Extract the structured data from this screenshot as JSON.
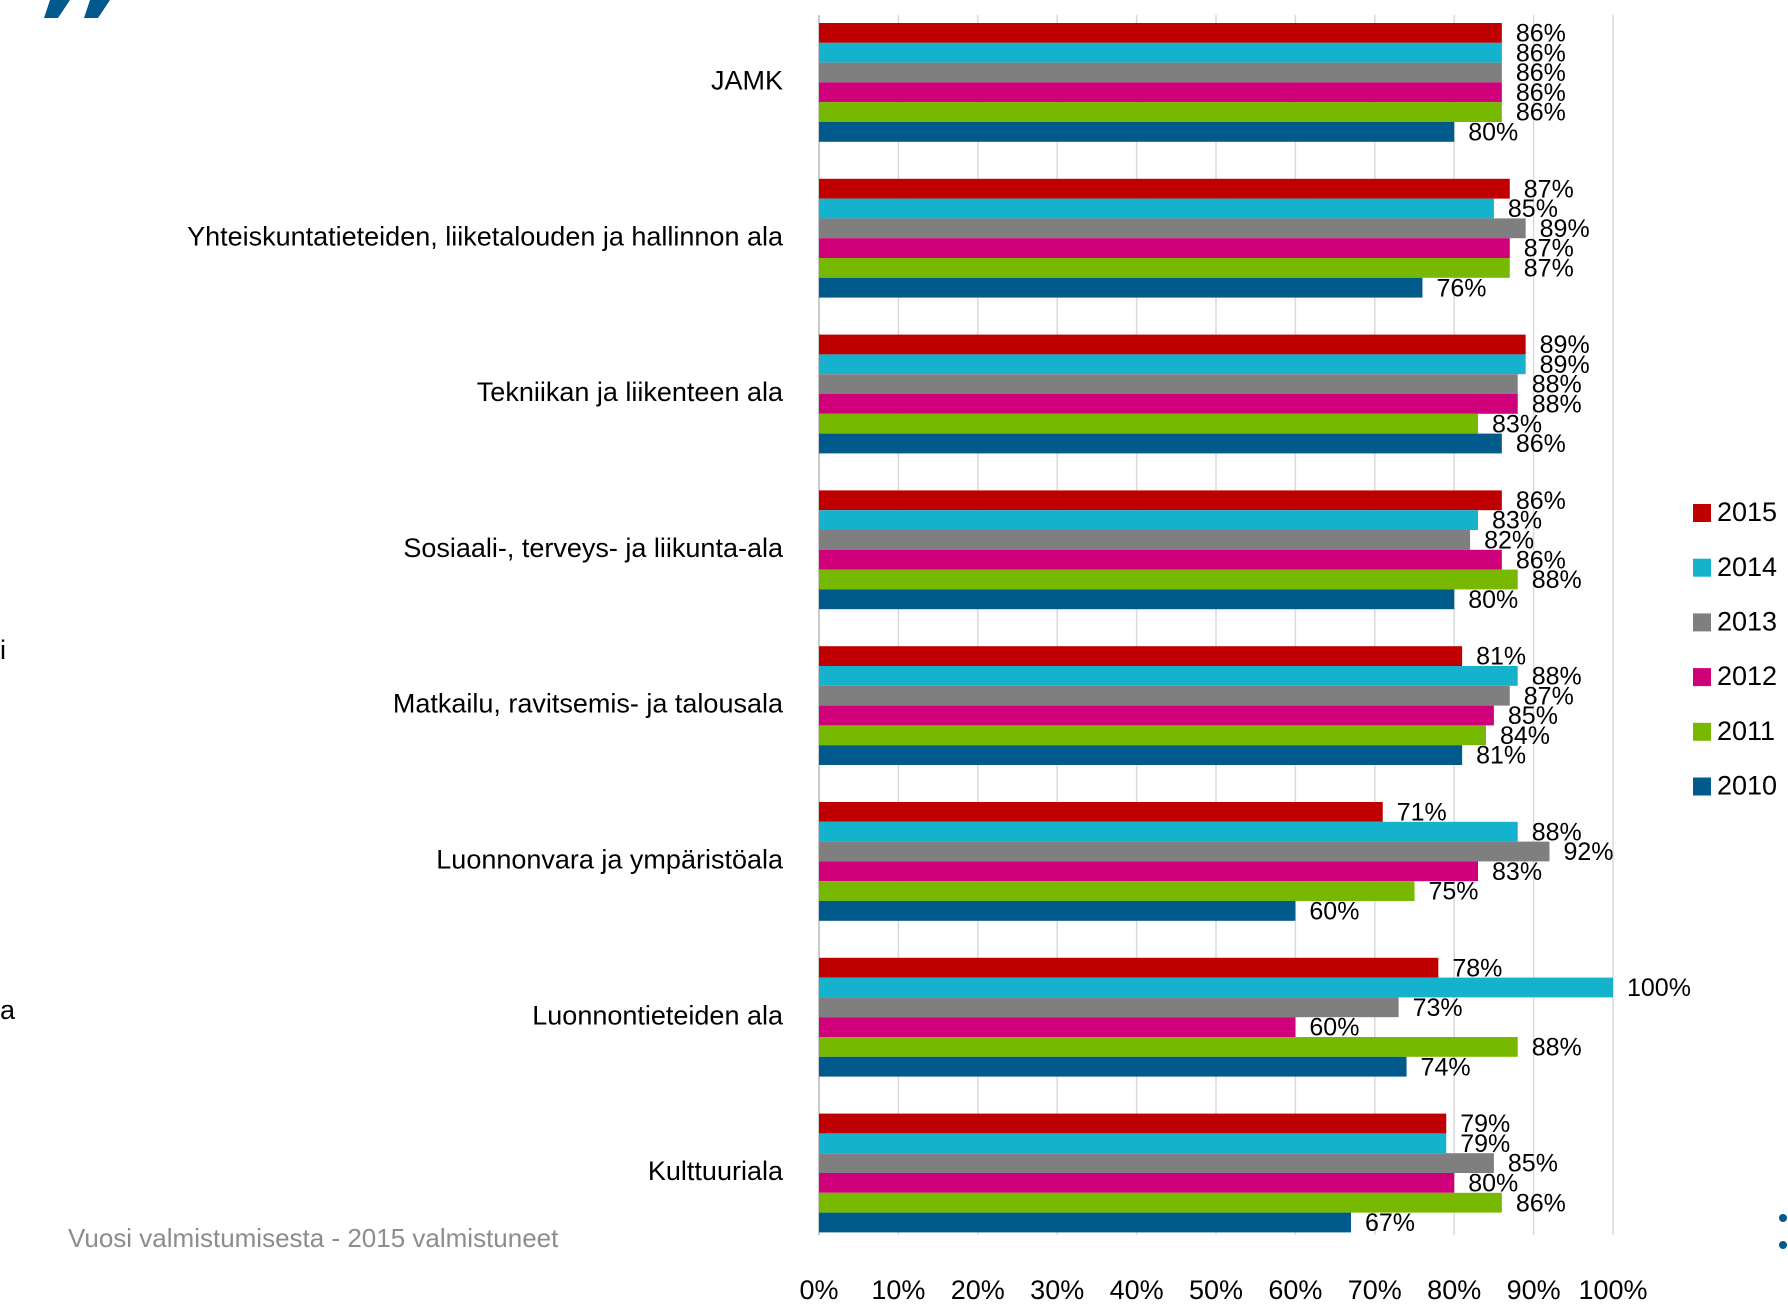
{
  "chart_data": {
    "type": "barh",
    "categories": [
      "JAMK",
      "Yhteiskuntatieteiden, liiketalouden ja hallinnon ala",
      "Tekniikan ja liikenteen ala",
      "Sosiaali-, terveys- ja liikunta-ala",
      "Matkailu, ravitsemis- ja talousala",
      "Luonnonvara ja ympäristöala",
      "Luonnontieteiden ala",
      "Kulttuuriala"
    ],
    "series": [
      {
        "name": "2015",
        "color": "#c00000",
        "values": [
          86,
          87,
          89,
          86,
          81,
          71,
          78,
          79
        ],
        "value_labels": [
          "86%",
          "87%",
          "89%",
          "86%",
          "81%",
          "71%",
          "78%",
          "79%"
        ]
      },
      {
        "name": "2014",
        "color": "#14b2cc",
        "values": [
          86,
          85,
          89,
          83,
          88,
          88,
          100,
          79
        ],
        "value_labels": [
          "86%",
          "85%",
          "89%",
          "83%",
          "88%",
          "88%",
          "100%",
          "79%"
        ]
      },
      {
        "name": "2013",
        "color": "#7f7f7f",
        "values": [
          86,
          89,
          88,
          82,
          87,
          92,
          73,
          85
        ],
        "value_labels": [
          "86%",
          "89%",
          "88%",
          "82%",
          "87%",
          "92%",
          "73%",
          "85%"
        ]
      },
      {
        "name": "2012",
        "color": "#d0007a",
        "values": [
          86,
          87,
          88,
          86,
          85,
          83,
          60,
          80
        ],
        "value_labels": [
          "86%",
          "87%",
          "88%",
          "86%",
          "85%",
          "83%",
          "60%",
          "80%"
        ]
      },
      {
        "name": "2011",
        "color": "#76b900",
        "values": [
          86,
          87,
          83,
          88,
          84,
          75,
          88,
          86
        ],
        "value_labels": [
          "86%",
          "87%",
          "83%",
          "88%",
          "84%",
          "75%",
          "88%",
          "86%"
        ]
      },
      {
        "name": "2010",
        "color": "#005b8c",
        "values": [
          80,
          76,
          86,
          80,
          81,
          60,
          74,
          67
        ],
        "value_labels": [
          "80%",
          "76%",
          "86%",
          "80%",
          "81%",
          "60%",
          "74%",
          "67%"
        ]
      }
    ],
    "xlim": [
      0,
      100
    ],
    "xticks": [
      {
        "value": 0,
        "label": "0%"
      },
      {
        "value": 10,
        "label": "10%"
      },
      {
        "value": 20,
        "label": "20%"
      },
      {
        "value": 30,
        "label": "30%"
      },
      {
        "value": 40,
        "label": "40%"
      },
      {
        "value": 50,
        "label": "50%"
      },
      {
        "value": 60,
        "label": "60%"
      },
      {
        "value": 70,
        "label": "70%"
      },
      {
        "value": 80,
        "label": "80%"
      },
      {
        "value": 90,
        "label": "90%"
      },
      {
        "value": 100,
        "label": "100%"
      }
    ],
    "grid": true,
    "legend": "right",
    "footnote": "Vuosi valmistumisesta - 2015 valmistuneet",
    "side_fragments": [
      "i",
      "a"
    ]
  }
}
